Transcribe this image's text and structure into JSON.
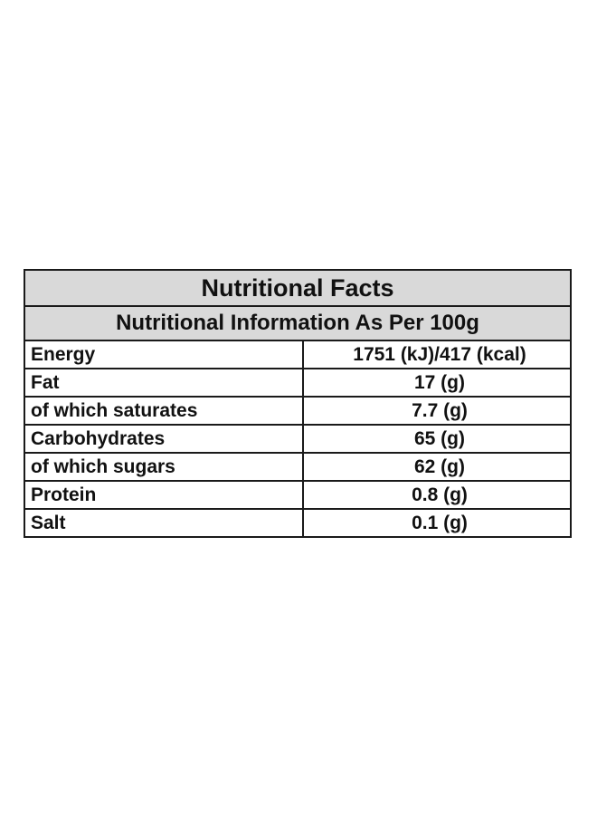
{
  "table": {
    "title": "Nutritional Facts",
    "subtitle": "Nutritional Information As Per 100g",
    "rows": [
      {
        "name": "Energy",
        "value": "1751 (kJ)/417 (kcal)"
      },
      {
        "name": "Fat",
        "value": "17 (g)"
      },
      {
        "name": "of which saturates",
        "value": "7.7 (g)"
      },
      {
        "name": "Carbohydrates",
        "value": "65 (g)"
      },
      {
        "name": "of which sugars",
        "value": "62 (g)"
      },
      {
        "name": "Protein",
        "value": "0.8 (g)"
      },
      {
        "name": "Salt",
        "value": "0.1 (g)"
      }
    ]
  },
  "colors": {
    "header_background": "#d9d9d9",
    "border": "#1a1a1a",
    "text": "#111111"
  }
}
